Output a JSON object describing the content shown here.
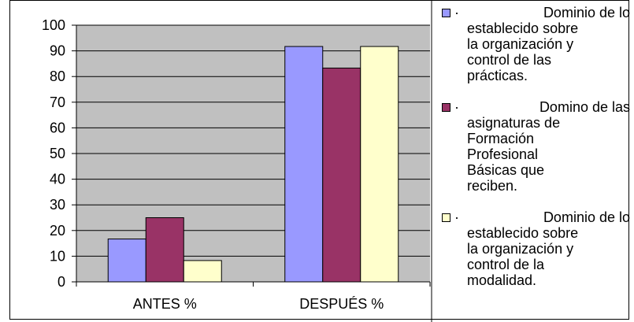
{
  "chart_data": {
    "type": "bar",
    "categories": [
      "ANTES %",
      "DESPUÉS %"
    ],
    "series": [
      {
        "name": "· Dominio de lo establecido sobre la organización y control de las prácticas.",
        "color": "#9999ff",
        "values": [
          16.7,
          91.7
        ]
      },
      {
        "name": "· Domino de las asignaturas de Formación Profesional Básicas que reciben.",
        "color": "#993366",
        "values": [
          25,
          83.3
        ]
      },
      {
        "name": "· Dominio de lo establecido sobre la organización y control de la modalidad.",
        "color": "#ffffcc",
        "values": [
          8.3,
          91.7
        ]
      }
    ],
    "ylim": [
      0,
      100
    ],
    "yticks": [
      0,
      10,
      20,
      30,
      40,
      50,
      60,
      70,
      80,
      90,
      100
    ],
    "grid": true,
    "plot_background": "#c0c0c0",
    "legend_position": "right"
  },
  "legend": [
    {
      "bullet": "·",
      "first": "Dominio de lo",
      "rest": [
        "establecido sobre",
        "la organización y",
        "control de las",
        "prácticas."
      ]
    },
    {
      "bullet": "·",
      "first": "Domino de las",
      "rest": [
        "asignaturas de",
        "Formación",
        "Profesional",
        "Básicas que",
        "reciben."
      ]
    },
    {
      "bullet": "·",
      "first": "Dominio de lo",
      "rest": [
        "establecido sobre",
        "la organización y",
        "control de la",
        "modalidad."
      ]
    }
  ]
}
